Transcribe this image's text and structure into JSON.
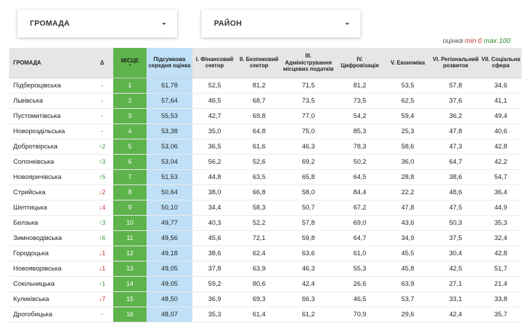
{
  "filters": {
    "hromada_label": "ГРОМАДА",
    "raion_label": "РАЙОН"
  },
  "legend": {
    "prefix": "оцінка ",
    "min_label": "min 0",
    "max_label": "max 100"
  },
  "headers": {
    "name": "ГРОМАДА",
    "delta": "Δ",
    "place": "МІСЦЕ",
    "place_sort_marker": "•",
    "total": "Підсумкова середня оцінка",
    "c1": "I. Фінансовий сектор",
    "c2": "II. Безпековий сектор",
    "c3": "III. Адміністрування місцевих податків",
    "c4": "IV. Цифровізація",
    "c5": "V. Економіка",
    "c6": "VI. Регіональний розвиток",
    "c7": "VII. Соціальна сфера"
  },
  "rows": [
    {
      "name": "Підберізцівська",
      "delta": "-",
      "dir": "none",
      "place": "1",
      "total": "61,78",
      "c1": "52,5",
      "c2": "81,2",
      "c3": "71,5",
      "c4": "81,2",
      "c5": "53,5",
      "c6": "57,8",
      "c7": "34,6"
    },
    {
      "name": "Львівська",
      "delta": "-",
      "dir": "none",
      "place": "2",
      "total": "57,64",
      "c1": "46,5",
      "c2": "68,7",
      "c3": "73,5",
      "c4": "73,5",
      "c5": "62,5",
      "c6": "37,6",
      "c7": "41,1"
    },
    {
      "name": "Пустомитівська",
      "delta": "-",
      "dir": "none",
      "place": "3",
      "total": "55,53",
      "c1": "42,7",
      "c2": "69,8",
      "c3": "77,0",
      "c4": "54,2",
      "c5": "59,4",
      "c6": "36,2",
      "c7": "49,4"
    },
    {
      "name": "Новороздільська",
      "delta": "-",
      "dir": "none",
      "place": "4",
      "total": "53,38",
      "c1": "35,0",
      "c2": "64,8",
      "c3": "75,0",
      "c4": "85,3",
      "c5": "25,3",
      "c6": "47,8",
      "c7": "40,6"
    },
    {
      "name": "Добротвірська",
      "delta": "↑2",
      "dir": "up",
      "place": "5",
      "total": "53,06",
      "c1": "36,5",
      "c2": "61,6",
      "c3": "46,3",
      "c4": "78,3",
      "c5": "58,6",
      "c6": "47,3",
      "c7": "42,8"
    },
    {
      "name": "Солонківська",
      "delta": "↑3",
      "dir": "up",
      "place": "6",
      "total": "53,04",
      "c1": "56,2",
      "c2": "52,6",
      "c3": "69,2",
      "c4": "50,2",
      "c5": "36,0",
      "c6": "64,7",
      "c7": "42,2"
    },
    {
      "name": "Новояричівська",
      "delta": "↑5",
      "dir": "up",
      "place": "7",
      "total": "51,53",
      "c1": "44,8",
      "c2": "63,5",
      "c3": "65,8",
      "c4": "64,5",
      "c5": "28,8",
      "c6": "38,6",
      "c7": "54,7"
    },
    {
      "name": "Стрийська",
      "delta": "↓2",
      "dir": "down",
      "place": "8",
      "total": "50,64",
      "c1": "38,0",
      "c2": "66,8",
      "c3": "58,0",
      "c4": "84,4",
      "c5": "22,2",
      "c6": "48,6",
      "c7": "36,4"
    },
    {
      "name": "Шептицька",
      "delta": "↓4",
      "dir": "down",
      "place": "9",
      "total": "50,10",
      "c1": "34,4",
      "c2": "58,3",
      "c3": "50,7",
      "c4": "67,2",
      "c5": "47,8",
      "c6": "47,5",
      "c7": "44,9"
    },
    {
      "name": "Белзька",
      "delta": "↑3",
      "dir": "up",
      "place": "10",
      "total": "49,77",
      "c1": "40,3",
      "c2": "52,2",
      "c3": "57,8",
      "c4": "69,0",
      "c5": "43,6",
      "c6": "50,3",
      "c7": "35,3"
    },
    {
      "name": "Зимноводівська",
      "delta": "↑6",
      "dir": "up",
      "place": "11",
      "total": "49,56",
      "c1": "45,6",
      "c2": "72,1",
      "c3": "59,8",
      "c4": "64,7",
      "c5": "34,9",
      "c6": "37,5",
      "c7": "32,4"
    },
    {
      "name": "Городоцька",
      "delta": "↓1",
      "dir": "down",
      "place": "12",
      "total": "49,18",
      "c1": "38,6",
      "c2": "62,4",
      "c3": "63,6",
      "c4": "61,0",
      "c5": "45,5",
      "c6": "30,4",
      "c7": "42,8"
    },
    {
      "name": "Новояворівська",
      "delta": "↓1",
      "dir": "down",
      "place": "13",
      "total": "49,05",
      "c1": "37,8",
      "c2": "63,9",
      "c3": "46,3",
      "c4": "55,3",
      "c5": "45,8",
      "c6": "42,5",
      "c7": "51,7"
    },
    {
      "name": "Сокільницька",
      "delta": "↑1",
      "dir": "up",
      "place": "14",
      "total": "49,05",
      "c1": "59,2",
      "c2": "80,6",
      "c3": "42,4",
      "c4": "26,6",
      "c5": "63,9",
      "c6": "27,1",
      "c7": "21,4"
    },
    {
      "name": "Куликівська",
      "delta": "↓7",
      "dir": "down",
      "place": "15",
      "total": "48,50",
      "c1": "36,9",
      "c2": "69,3",
      "c3": "66,3",
      "c4": "46,5",
      "c5": "53,7",
      "c6": "33,1",
      "c7": "33,8"
    },
    {
      "name": "Дрогобицька",
      "delta": "-",
      "dir": "none",
      "place": "16",
      "total": "48,07",
      "c1": "35,3",
      "c2": "61,4",
      "c3": "61,2",
      "c4": "70,9",
      "c5": "29,6",
      "c6": "42,4",
      "c7": "35,7"
    }
  ],
  "colors": {
    "place_green": "#5fb34c",
    "total_blue": "#bfe0f7",
    "delta_up": "#3a9b3a",
    "delta_down": "#c0392b"
  }
}
